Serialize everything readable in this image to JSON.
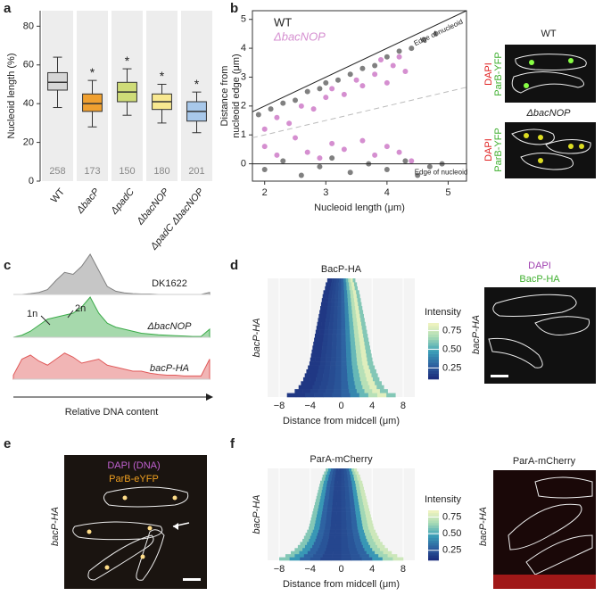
{
  "panel_labels": [
    "a",
    "b",
    "c",
    "d",
    "e",
    "f"
  ],
  "chart_data": [
    {
      "type": "box",
      "ylabel": "Nucleoid length (%)",
      "categories": [
        "WT",
        "ΔbacP",
        "ΔpadC",
        "ΔbacNOP",
        "ΔpadC ΔbacNOP"
      ],
      "boxes": [
        {
          "low": 38,
          "q1": 47,
          "median": 51,
          "q3": 56,
          "high": 64
        },
        {
          "low": 28,
          "q1": 36,
          "median": 40,
          "q3": 45,
          "high": 52
        },
        {
          "low": 34,
          "q1": 41,
          "median": 46,
          "q3": 51,
          "high": 58
        },
        {
          "low": 30,
          "q1": 37,
          "median": 41,
          "q3": 45,
          "high": 50
        },
        {
          "low": 25,
          "q1": 31,
          "median": 36,
          "q3": 41,
          "high": 46
        }
      ],
      "counts": [
        258,
        173,
        150,
        180,
        201
      ],
      "significance": [
        null,
        "*",
        "*",
        "*",
        "*"
      ],
      "colors": [
        "#d6d6d6",
        "#f0a030",
        "#cfdc78",
        "#f8e890",
        "#a8c8ea"
      ],
      "ylim": [
        0,
        88
      ],
      "yticks": [
        0,
        20,
        40,
        60,
        80
      ]
    },
    {
      "type": "scatter",
      "xlabel": "Nucleoid length (μm)",
      "ylabel": [
        "Distance from",
        "nucleoid edge (μm)"
      ],
      "xlim": [
        1.8,
        5.3
      ],
      "ylim": [
        -0.6,
        5.3
      ],
      "xticks": [
        2,
        3,
        4,
        5
      ],
      "yticks": [
        0,
        1,
        2,
        3,
        4,
        5
      ],
      "series": [
        {
          "name": "WT",
          "color": "#808080",
          "x": [
            1.9,
            2.1,
            2.3,
            2.5,
            2.7,
            2.9,
            3.0,
            3.2,
            3.4,
            3.6,
            3.8,
            4.0,
            4.2,
            4.4,
            4.6,
            4.8,
            2.0,
            2.3,
            2.6,
            2.9,
            3.1,
            3.4,
            3.7,
            4.0,
            4.3,
            4.5,
            4.7,
            4.9
          ],
          "values": [
            1.7,
            1.9,
            2.1,
            2.2,
            2.5,
            2.6,
            2.8,
            2.9,
            3.1,
            3.3,
            3.4,
            3.7,
            3.9,
            4.0,
            4.3,
            4.5,
            -0.2,
            0.1,
            -0.4,
            -0.1,
            0.2,
            -0.3,
            0.0,
            -0.2,
            0.1,
            -0.4,
            -0.1,
            0.0
          ]
        },
        {
          "name": "ΔbacNOP",
          "color": "#d58fd0",
          "x": [
            2.0,
            2.2,
            2.4,
            2.6,
            2.8,
            3.0,
            3.1,
            3.3,
            3.5,
            3.6,
            3.8,
            3.9,
            4.0,
            4.1,
            4.2,
            4.3,
            2.0,
            2.2,
            2.5,
            2.7,
            2.9,
            3.1,
            3.3,
            3.6,
            3.8,
            4.0,
            4.2,
            4.4
          ],
          "values": [
            1.2,
            1.6,
            1.4,
            2.0,
            1.9,
            2.3,
            2.6,
            2.4,
            2.9,
            2.7,
            3.1,
            3.6,
            2.8,
            3.4,
            3.7,
            3.2,
            0.6,
            0.3,
            0.9,
            0.4,
            0.2,
            0.7,
            0.5,
            0.8,
            0.3,
            0.6,
            0.4,
            0.1
          ]
        }
      ],
      "reference_lines": [
        {
          "slope": 1,
          "intercept": 0,
          "label": "Edge of nucleoid",
          "style": "solid"
        },
        {
          "slope": 0,
          "intercept": 0,
          "label": "Edge of nucleoid",
          "style": "solid"
        },
        {
          "slope": 0.5,
          "intercept": 0,
          "style": "dashed"
        }
      ]
    },
    {
      "type": "density",
      "xlabel": "Relative DNA content",
      "peak_labels": [
        "1n",
        "2n"
      ],
      "series": [
        {
          "name": "DK1622",
          "color": "#808080",
          "values": [
            0,
            0,
            0.02,
            0.05,
            0.12,
            0.35,
            0.55,
            0.5,
            0.7,
            1.0,
            0.6,
            0.2,
            0.08,
            0.04,
            0.02,
            0.01,
            0.01,
            0,
            0,
            0,
            0,
            0,
            0,
            0.05
          ]
        },
        {
          "name": "ΔbacNOP",
          "color": "#3aaa48",
          "values": [
            0,
            0.05,
            0.15,
            0.3,
            0.45,
            0.5,
            0.55,
            0.6,
            0.75,
            1.0,
            0.6,
            0.35,
            0.25,
            0.2,
            0.15,
            0.1,
            0.08,
            0.06,
            0.05,
            0.04,
            0.03,
            0.02,
            0.02,
            0.2
          ]
        },
        {
          "name": "bacP-HA",
          "color": "#e05a5a",
          "values": [
            0.1,
            0.5,
            0.6,
            0.45,
            0.35,
            0.5,
            0.65,
            0.55,
            0.4,
            0.45,
            0.5,
            0.35,
            0.3,
            0.25,
            0.2,
            0.2,
            0.15,
            0.12,
            0.1,
            0.1,
            0.08,
            0.08,
            0.08,
            0.5
          ]
        }
      ]
    },
    {
      "type": "heatmap",
      "title": "BacP-HA",
      "ylabel": "bacP-HA",
      "xlabel": "Distance from midcell (μm)",
      "xlim": [
        -9.5,
        9.5
      ],
      "xticks": [
        {
          "value": -8,
          "label": "−8"
        },
        {
          "value": -4,
          "label": "−4"
        },
        0,
        4,
        8
      ],
      "grid": true,
      "colorbar_label": "Intensity",
      "clim": [
        0.1,
        0.85
      ],
      "cticks": [
        0.25,
        {
          "value": 0.5,
          "label": "0.50"
        },
        0.75
      ],
      "colormap": [
        "#1b2a7a",
        "#2d5fa0",
        "#3aa0b8",
        "#a8dbb5",
        "#f5f5c0"
      ],
      "half_lengths": [
        1.8,
        2.0,
        2.1,
        2.3,
        2.4,
        2.5,
        2.6,
        2.7,
        2.8,
        2.9,
        3.0,
        3.1,
        3.2,
        3.3,
        3.4,
        3.5,
        3.6,
        3.7,
        3.8,
        3.9,
        4.0,
        4.1,
        4.3,
        4.5,
        4.7,
        4.9,
        5.2,
        5.5,
        6.0,
        7.0
      ],
      "profile": [
        0.15,
        0.15,
        0.18,
        0.2,
        0.22,
        0.25,
        0.3,
        0.4,
        0.55,
        0.7,
        0.8,
        0.6
      ]
    },
    {
      "type": "heatmap",
      "title": "ParA-mCherry",
      "ylabel": "bacP-HA",
      "xlabel": "Distance from midcell (μm)",
      "xlim": [
        -9.5,
        9.5
      ],
      "xticks": [
        {
          "value": -8,
          "label": "−8"
        },
        {
          "value": -4,
          "label": "−4"
        },
        0,
        4,
        8
      ],
      "grid": true,
      "colorbar_label": "Intensity",
      "clim": [
        0.1,
        0.85
      ],
      "cticks": [
        0.25,
        {
          "value": 0.5,
          "label": "0.50"
        },
        0.75
      ],
      "colormap": [
        "#1b2a7a",
        "#2d5fa0",
        "#3aa0b8",
        "#a8dbb5",
        "#f5f5c0"
      ],
      "half_lengths": [
        2.0,
        2.2,
        2.4,
        2.5,
        2.7,
        2.8,
        2.9,
        3.0,
        3.1,
        3.2,
        3.3,
        3.4,
        3.5,
        3.6,
        3.7,
        3.8,
        3.9,
        4.0,
        4.1,
        4.2,
        4.4,
        4.6,
        4.8,
        5.0,
        5.3,
        5.6,
        6.0,
        6.5,
        7.2,
        8.0
      ],
      "profile": [
        0.6,
        0.45,
        0.3,
        0.25,
        0.2,
        0.2,
        0.22,
        0.25,
        0.3,
        0.45,
        0.65,
        0.75
      ]
    }
  ],
  "micrographs": [
    {
      "title": "WT",
      "channels": [
        "DAPI",
        "ParB-YFP"
      ]
    },
    {
      "title": "ΔbacNOP",
      "channels": [
        "DAPI",
        "ParB-YFP"
      ]
    },
    {
      "channels": [
        "DAPI",
        "BacP-HA"
      ],
      "side_label": "bacP-HA"
    },
    {
      "channels": [
        "DAPI (DNA)",
        "ParB-eYFP"
      ],
      "side_label": "bacP-HA"
    },
    {
      "title": "ParA-mCherry",
      "side_label": "bacP-HA"
    }
  ]
}
